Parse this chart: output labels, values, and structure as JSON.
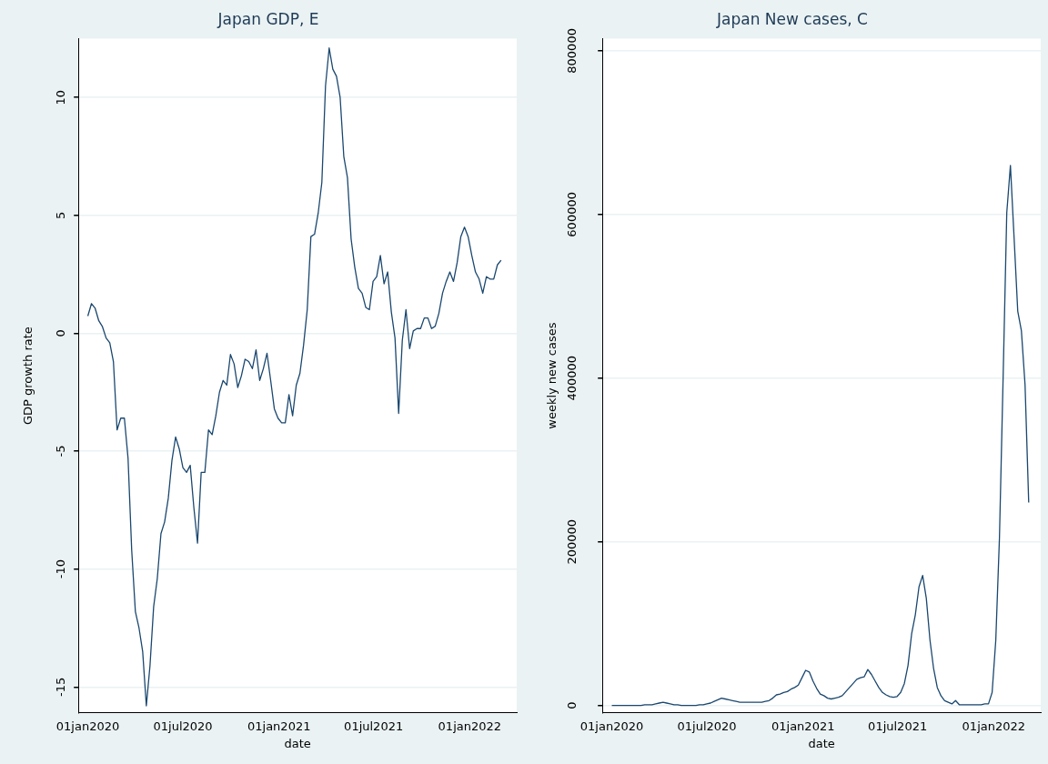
{
  "chart_data": [
    {
      "type": "line",
      "title": "Japan GDP, E",
      "xlabel": "date",
      "ylabel": "GDP growth rate",
      "x": [
        "2020-01-01",
        "2020-01-08",
        "2020-01-15",
        "2020-01-22",
        "2020-01-29",
        "2020-02-05",
        "2020-02-12",
        "2020-02-19",
        "2020-02-26",
        "2020-03-04",
        "2020-03-11",
        "2020-03-18",
        "2020-03-25",
        "2020-04-01",
        "2020-04-08",
        "2020-04-15",
        "2020-04-22",
        "2020-04-29",
        "2020-05-06",
        "2020-05-13",
        "2020-05-20",
        "2020-05-27",
        "2020-06-03",
        "2020-06-10",
        "2020-06-17",
        "2020-06-24",
        "2020-07-01",
        "2020-07-08",
        "2020-07-15",
        "2020-07-22",
        "2020-07-29",
        "2020-08-05",
        "2020-08-12",
        "2020-08-19",
        "2020-08-26",
        "2020-09-02",
        "2020-09-09",
        "2020-09-16",
        "2020-09-23",
        "2020-09-30",
        "2020-10-07",
        "2020-10-14",
        "2020-10-21",
        "2020-10-28",
        "2020-11-04",
        "2020-11-11",
        "2020-11-18",
        "2020-11-25",
        "2020-12-02",
        "2020-12-09",
        "2020-12-16",
        "2020-12-23",
        "2020-12-30",
        "2021-01-06",
        "2021-01-13",
        "2021-01-20",
        "2021-01-27",
        "2021-02-03",
        "2021-02-10",
        "2021-02-17",
        "2021-02-24",
        "2021-03-03",
        "2021-03-10",
        "2021-03-17",
        "2021-03-24",
        "2021-03-31",
        "2021-04-07",
        "2021-04-14",
        "2021-04-21",
        "2021-04-28",
        "2021-05-05",
        "2021-05-12",
        "2021-05-19",
        "2021-05-26",
        "2021-06-02",
        "2021-06-09",
        "2021-06-16",
        "2021-06-23",
        "2021-06-30",
        "2021-07-07",
        "2021-07-14",
        "2021-07-21",
        "2021-07-28",
        "2021-08-04",
        "2021-08-11",
        "2021-08-18",
        "2021-08-25",
        "2021-09-01",
        "2021-09-08",
        "2021-09-15",
        "2021-09-22",
        "2021-09-29",
        "2021-10-06",
        "2021-10-13",
        "2021-10-20",
        "2021-10-27",
        "2021-11-03",
        "2021-11-10",
        "2021-11-17",
        "2021-11-24",
        "2021-12-01",
        "2021-12-08",
        "2021-12-15",
        "2021-12-22",
        "2021-12-29",
        "2022-01-05",
        "2022-01-12",
        "2022-01-19",
        "2022-01-26",
        "2022-02-02",
        "2022-02-09",
        "2022-02-16",
        "2022-02-23",
        "2022-03-02"
      ],
      "series": [
        {
          "color": "#1a476f",
          "values": [
            0.73,
            1.26,
            1.06,
            0.53,
            0.28,
            -0.2,
            -0.4,
            -1.2,
            -4.1,
            -3.6,
            -3.6,
            -5.3,
            -9.2,
            -11.8,
            -12.5,
            -13.5,
            -15.8,
            -14.1,
            -11.6,
            -10.4,
            -8.5,
            -8.0,
            -7.0,
            -5.4,
            -4.4,
            -4.9,
            -5.7,
            -5.9,
            -5.6,
            -7.4,
            -8.9,
            -5.9,
            -5.9,
            -4.1,
            -4.3,
            -3.5,
            -2.5,
            -2.0,
            -2.2,
            -0.9,
            -1.3,
            -2.3,
            -1.8,
            -1.1,
            -1.2,
            -1.5,
            -0.7,
            -2.0,
            -1.5,
            -0.85,
            -2.0,
            -3.2,
            -3.6,
            -3.8,
            -3.8,
            -2.6,
            -3.5,
            -2.2,
            -1.7,
            -0.5,
            1.0,
            4.1,
            4.2,
            5.1,
            6.4,
            10.5,
            12.1,
            11.2,
            10.9,
            10.0,
            7.5,
            6.6,
            4.0,
            2.8,
            1.9,
            1.7,
            1.1,
            1.0,
            2.2,
            2.4,
            3.3,
            2.1,
            2.6,
            0.9,
            -0.2,
            -3.4,
            -0.3,
            1.0,
            -0.65,
            0.1,
            0.2,
            0.2,
            0.65,
            0.65,
            0.2,
            0.3,
            0.85,
            1.7,
            2.2,
            2.6,
            2.2,
            3.0,
            4.1,
            4.5,
            4.1,
            3.3,
            2.6,
            2.3,
            1.7,
            2.4,
            2.3,
            2.3,
            2.9,
            3.1
          ]
        }
      ],
      "xlim": [
        "2019-12-14",
        "2022-04-01"
      ],
      "xticks": [
        {
          "value": "2020-01-01",
          "label": "01jan2020"
        },
        {
          "value": "2020-07-01",
          "label": "01jul2020"
        },
        {
          "value": "2021-01-01",
          "label": "01jan2021"
        },
        {
          "value": "2021-07-01",
          "label": "01jul2021"
        },
        {
          "value": "2022-01-01",
          "label": "01jan2022"
        }
      ],
      "ylim": [
        -16.1,
        12.5
      ],
      "yticks": [
        -15,
        -10,
        -5,
        0,
        5,
        10
      ],
      "grid": "y",
      "legend": false,
      "marker": "none",
      "line_style": "solid"
    },
    {
      "type": "line",
      "title": "Japan New cases, C",
      "xlabel": "date",
      "ylabel": "weekly new cases",
      "x": [
        "2020-01-01",
        "2020-01-08",
        "2020-01-15",
        "2020-01-22",
        "2020-01-29",
        "2020-02-05",
        "2020-02-12",
        "2020-02-19",
        "2020-02-26",
        "2020-03-04",
        "2020-03-11",
        "2020-03-18",
        "2020-03-25",
        "2020-04-01",
        "2020-04-08",
        "2020-04-15",
        "2020-04-22",
        "2020-04-29",
        "2020-05-06",
        "2020-05-13",
        "2020-05-20",
        "2020-05-27",
        "2020-06-03",
        "2020-06-10",
        "2020-06-17",
        "2020-06-24",
        "2020-07-01",
        "2020-07-08",
        "2020-07-15",
        "2020-07-22",
        "2020-07-29",
        "2020-08-05",
        "2020-08-12",
        "2020-08-19",
        "2020-08-26",
        "2020-09-02",
        "2020-09-09",
        "2020-09-16",
        "2020-09-23",
        "2020-09-30",
        "2020-10-07",
        "2020-10-14",
        "2020-10-21",
        "2020-10-28",
        "2020-11-04",
        "2020-11-11",
        "2020-11-18",
        "2020-11-25",
        "2020-12-02",
        "2020-12-09",
        "2020-12-16",
        "2020-12-23",
        "2020-12-30",
        "2021-01-06",
        "2021-01-13",
        "2021-01-20",
        "2021-01-27",
        "2021-02-03",
        "2021-02-10",
        "2021-02-17",
        "2021-02-24",
        "2021-03-03",
        "2021-03-10",
        "2021-03-17",
        "2021-03-24",
        "2021-03-31",
        "2021-04-07",
        "2021-04-14",
        "2021-04-21",
        "2021-04-28",
        "2021-05-05",
        "2021-05-12",
        "2021-05-19",
        "2021-05-26",
        "2021-06-02",
        "2021-06-09",
        "2021-06-16",
        "2021-06-23",
        "2021-06-30",
        "2021-07-07",
        "2021-07-14",
        "2021-07-21",
        "2021-07-28",
        "2021-08-04",
        "2021-08-11",
        "2021-08-18",
        "2021-08-25",
        "2021-09-01",
        "2021-09-08",
        "2021-09-15",
        "2021-09-22",
        "2021-09-29",
        "2021-10-06",
        "2021-10-13",
        "2021-10-20",
        "2021-10-27",
        "2021-11-03",
        "2021-11-10",
        "2021-11-17",
        "2021-11-24",
        "2021-12-01",
        "2021-12-08",
        "2021-12-15",
        "2021-12-22",
        "2021-12-29",
        "2022-01-05",
        "2022-01-12",
        "2022-01-19",
        "2022-01-26",
        "2022-02-02",
        "2022-02-09",
        "2022-02-16",
        "2022-02-23",
        "2022-03-02",
        "2022-03-09"
      ],
      "series": [
        {
          "color": "#1a476f",
          "values": [
            0,
            0,
            0,
            0,
            0,
            0,
            0,
            0,
            0,
            1000,
            1000,
            1000,
            2000,
            3000,
            4000,
            3000,
            2000,
            1000,
            1000,
            0,
            0,
            0,
            0,
            0,
            1000,
            1000,
            2000,
            3000,
            5000,
            7000,
            9000,
            8000,
            7000,
            6000,
            5000,
            4000,
            4000,
            4000,
            4000,
            4000,
            4000,
            4000,
            5000,
            6000,
            9000,
            13000,
            14000,
            16000,
            17000,
            20000,
            22000,
            25000,
            34000,
            43000,
            41000,
            30000,
            21000,
            14000,
            12000,
            9000,
            8000,
            9000,
            10000,
            12000,
            17000,
            22000,
            27000,
            32000,
            34000,
            35000,
            44000,
            38000,
            30000,
            22000,
            16000,
            13000,
            11000,
            10000,
            11000,
            16000,
            27000,
            49000,
            88000,
            111000,
            145000,
            159000,
            131000,
            80000,
            45000,
            22000,
            12000,
            6000,
            4000,
            2000,
            6000,
            1000,
            1000,
            1000,
            1000,
            1000,
            1000,
            1000,
            2000,
            2000,
            16000,
            80000,
            205000,
            400000,
            602000,
            660000,
            572000,
            482000,
            458000,
            392000,
            248000
          ]
        }
      ],
      "xlim": [
        "2019-12-14",
        "2022-04-01"
      ],
      "xticks": [
        {
          "value": "2020-01-01",
          "label": "01jan2020"
        },
        {
          "value": "2020-07-01",
          "label": "01jul2020"
        },
        {
          "value": "2021-01-01",
          "label": "01jan2021"
        },
        {
          "value": "2021-07-01",
          "label": "01jul2021"
        },
        {
          "value": "2022-01-01",
          "label": "01jan2022"
        }
      ],
      "ylim": [
        -9000,
        815000
      ],
      "yticks": [
        0,
        200000,
        400000,
        600000,
        800000
      ],
      "grid": "y",
      "legend": false,
      "marker": "none",
      "line_style": "solid"
    }
  ]
}
